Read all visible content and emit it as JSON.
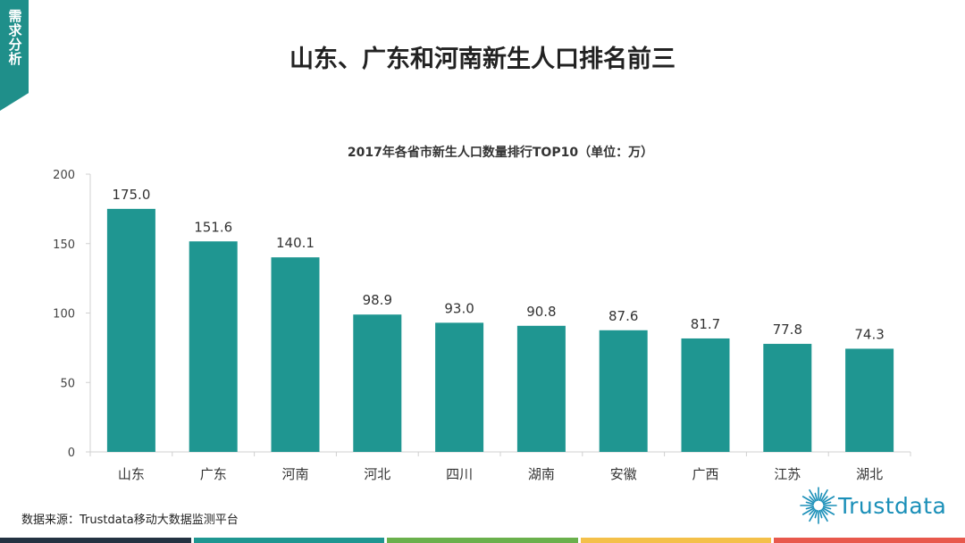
{
  "side_tab": {
    "text": "需求分析"
  },
  "page_title": "山东、广东和河南新生人口排名前三",
  "source": "数据来源：Trustdata移动大数据监测平台",
  "logo": {
    "text": "Trustdata",
    "icon": "starburst-logo-icon"
  },
  "colors": {
    "bar": "#1f9691",
    "tab": "#1f8f8a",
    "logo": "#1a8fb8",
    "strip": [
      "#233242",
      "#1f9691",
      "#6ab04c",
      "#f4c04a",
      "#e8584c"
    ]
  },
  "chart_data": {
    "type": "bar",
    "title": "2017年各省市新生人口数量排行TOP10（单位：万）",
    "categories": [
      "山东",
      "广东",
      "河南",
      "河北",
      "四川",
      "湖南",
      "安徽",
      "广西",
      "江苏",
      "湖北"
    ],
    "values": [
      175.0,
      151.6,
      140.1,
      98.9,
      93.0,
      90.8,
      87.6,
      81.7,
      77.8,
      74.3
    ],
    "value_labels": [
      "175.0",
      "151.6",
      "140.1",
      "98.9",
      "93.0",
      "90.8",
      "87.6",
      "81.7",
      "77.8",
      "74.3"
    ],
    "y_ticks": [
      0,
      50,
      100,
      150,
      200
    ],
    "ylim": [
      0,
      200
    ],
    "xlabel": "",
    "ylabel": "",
    "grid": false,
    "legend": "none"
  }
}
